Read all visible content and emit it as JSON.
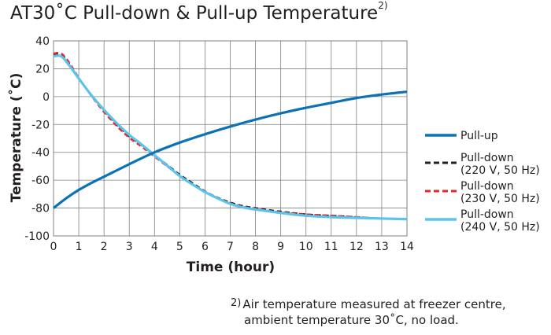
{
  "title": "AT30˚C Pull-down & Pull-up Temperature",
  "title_footnote_mark": "2)",
  "footnote": {
    "mark": "2)",
    "line1": "Air temperature measured at freezer centre,",
    "line2": "ambient temperature 30˚C, no load."
  },
  "colors": {
    "pull_up": "#0d72b5",
    "pull_down_220": "#231f20",
    "pull_down_230": "#e4262d",
    "pull_down_240": "#5bc4ec",
    "grid": "#808080",
    "axis_text": "#231f20"
  },
  "chart_data": {
    "type": "line",
    "xlabel": "Time (hour)",
    "ylabel": "Temperature (˚C)",
    "xlim": [
      0,
      14
    ],
    "ylim": [
      -100,
      40
    ],
    "x_ticks": [
      0,
      1,
      2,
      3,
      4,
      5,
      6,
      7,
      8,
      9,
      10,
      11,
      12,
      13,
      14
    ],
    "y_ticks": [
      40,
      20,
      0,
      -20,
      -40,
      -60,
      -80,
      -100
    ],
    "y_tick_labels": [
      "40",
      "20",
      "0",
      "-20",
      "-40",
      "-60",
      "-80",
      "-100"
    ],
    "grid": true,
    "legend_position": "right",
    "series": [
      {
        "name": "Pull-up",
        "legend_lines": [
          "Pull-up"
        ],
        "color": "#0d72b5",
        "style": "solid",
        "x": [
          0,
          0.5,
          1,
          1.5,
          2,
          3,
          4,
          5,
          6,
          7,
          8,
          9,
          10,
          11,
          12,
          13,
          14
        ],
        "y": [
          -80,
          -73,
          -67,
          -62,
          -57.5,
          -48.5,
          -40,
          -33,
          -27,
          -21.5,
          -16.5,
          -12,
          -8,
          -4.5,
          -1,
          1.5,
          3.5
        ]
      },
      {
        "name": "Pull-down (220 V, 50 Hz)",
        "legend_lines": [
          "Pull-down",
          "(220 V, 50 Hz)"
        ],
        "color": "#231f20",
        "style": "dashed",
        "x": [
          0,
          0.3,
          0.6,
          1,
          1.5,
          2,
          2.5,
          3,
          3.5,
          4,
          4.5,
          5,
          5.5,
          6,
          6.5,
          7,
          7.5,
          8,
          9,
          10,
          11,
          12,
          13,
          14
        ],
        "y": [
          30,
          30,
          24,
          13,
          1,
          -10,
          -20,
          -28.5,
          -35,
          -42,
          -49,
          -56,
          -62,
          -68,
          -72.5,
          -76,
          -78.5,
          -80,
          -82.5,
          -84.5,
          -85.5,
          -86.5,
          -87.5,
          -88
        ]
      },
      {
        "name": "Pull-down (230 V, 50 Hz)",
        "legend_lines": [
          "Pull-down",
          "(230 V, 50 Hz)"
        ],
        "color": "#e4262d",
        "style": "dashed",
        "x": [
          0,
          0.3,
          0.6,
          1,
          1.5,
          2,
          2.5,
          3,
          3.5,
          4,
          4.5,
          5,
          5.5,
          6,
          6.5,
          7,
          7.5,
          8,
          9,
          10,
          11,
          12,
          13,
          14
        ],
        "y": [
          31,
          31,
          25,
          13.5,
          0.5,
          -11,
          -21,
          -29.5,
          -36,
          -43,
          -50,
          -57,
          -63,
          -68.5,
          -73,
          -76.5,
          -79,
          -80.5,
          -83,
          -84.5,
          -85.5,
          -86.5,
          -87.5,
          -88
        ]
      },
      {
        "name": "Pull-down (240 V, 50 Hz)",
        "legend_lines": [
          "Pull-down",
          "(240 V, 50 Hz)"
        ],
        "color": "#5bc4ec",
        "style": "solid",
        "x": [
          0,
          0.3,
          0.6,
          1,
          1.5,
          2,
          2.5,
          3,
          3.5,
          4,
          4.5,
          5,
          5.5,
          6,
          6.5,
          7,
          7.5,
          8,
          9,
          10,
          11,
          12,
          13,
          14
        ],
        "y": [
          29,
          29,
          23,
          13,
          1,
          -9.5,
          -19,
          -27.5,
          -34.5,
          -42,
          -49.5,
          -57,
          -63,
          -68.5,
          -73,
          -77,
          -79.5,
          -81,
          -83.5,
          -85.5,
          -86.5,
          -87,
          -87.5,
          -88
        ]
      }
    ]
  }
}
